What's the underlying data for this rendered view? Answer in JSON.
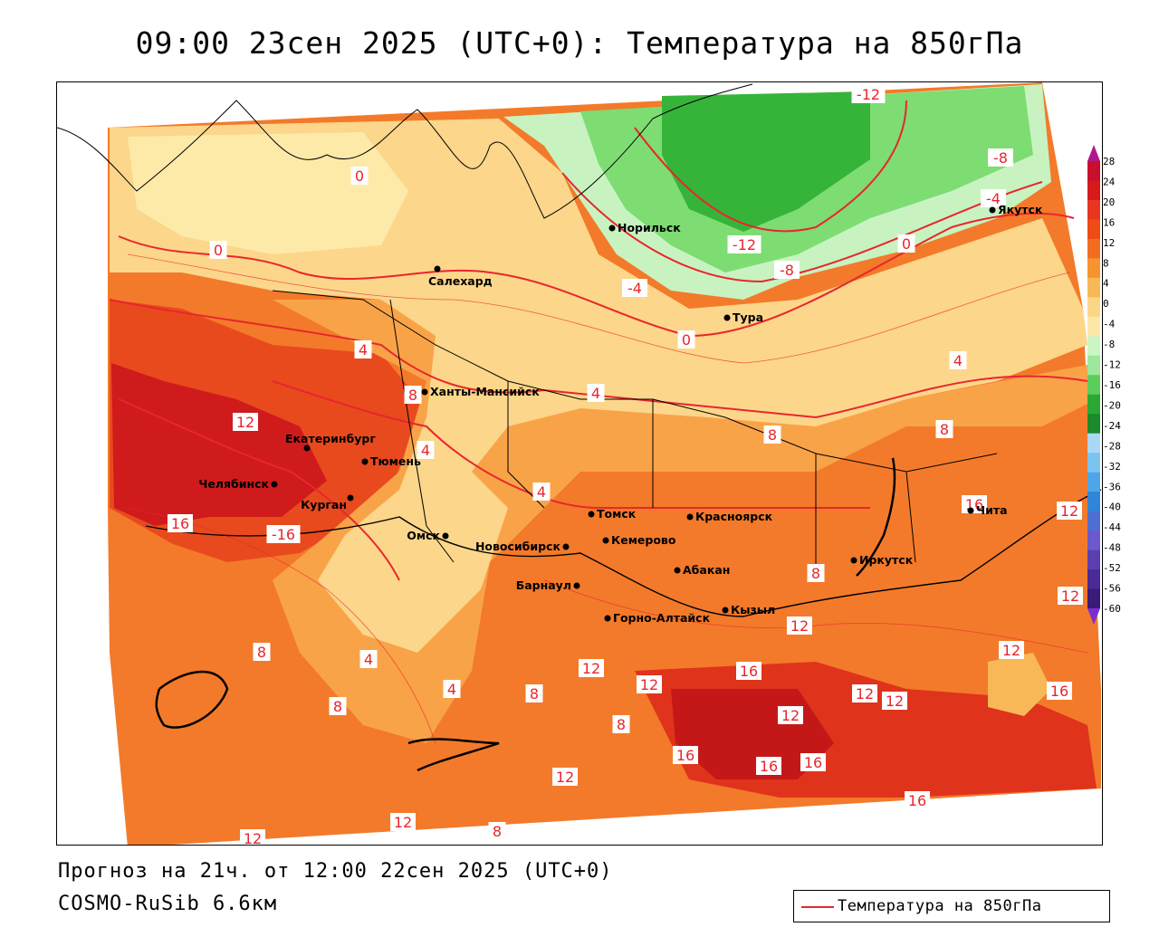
{
  "title": "09:00 23сен 2025 (UTC+0): Температура на 850гПа",
  "footer": {
    "forecast": "Прогноз на 21ч. от 12:00 22сен 2025 (UTC+0)",
    "model": "COSMO-RuSib 6.6км"
  },
  "legend": {
    "label": "Температура на 850гПа",
    "line_color": "#e8262d"
  },
  "colorbar": {
    "ticks": [
      "28",
      "24",
      "20",
      "16",
      "12",
      "8",
      "4",
      "0",
      "-4",
      "-8",
      "-12",
      "-16",
      "-20",
      "-24",
      "-28",
      "-32",
      "-36",
      "-40",
      "-44",
      "-48",
      "-52",
      "-56",
      "-60"
    ],
    "colors": [
      "#c8102e",
      "#d7191c",
      "#e8351f",
      "#ef4b16",
      "#f36d21",
      "#f79431",
      "#f9b858",
      "#fbd684",
      "#fde7a8",
      "#ccf5c5",
      "#9de89a",
      "#5ccd5b",
      "#2aa834",
      "#1a8a2a",
      "#a9d8f5",
      "#7cc3f0",
      "#4ea6e8",
      "#2f86d9",
      "#4e6fd1",
      "#6a5acd",
      "#5b3fb0",
      "#4a2a95",
      "#3a1a7a"
    ]
  },
  "contour_labels": [
    "-12",
    "-8",
    "-4",
    "-12",
    "-8",
    "0",
    "0",
    "0",
    "-4",
    "0",
    "4",
    "4",
    "8",
    "4",
    "4",
    "4",
    "8",
    "8",
    "12",
    "16",
    "-16",
    "16",
    "8",
    "8",
    "4",
    "4",
    "8",
    "8",
    "8",
    "12",
    "12",
    "16",
    "12",
    "12",
    "12",
    "16",
    "12",
    "16",
    "12",
    "16",
    "16",
    "16",
    "12",
    "12",
    "12",
    "8",
    "12",
    "12"
  ],
  "cities": [
    "Норильск",
    "Якутск",
    "Салехард",
    "Тура",
    "Ханты-Мансийск",
    "Екатеринбург",
    "Тюмень",
    "Челябинск",
    "Курган",
    "Омск",
    "Томск",
    "Красноярск",
    "Новосибирск",
    "Кемерово",
    "Абакан",
    "Иркутск",
    "Чита",
    "Барнаул",
    "Горно-Алтайск",
    "Кызыл"
  ]
}
